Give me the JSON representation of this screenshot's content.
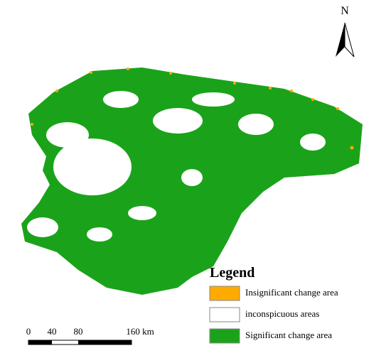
{
  "north": "N",
  "legend": {
    "title": "Legend",
    "items": [
      {
        "label": "Insignificant change area",
        "color": "#ffaa00"
      },
      {
        "label": "inconspicuous areas",
        "color": "#ffffff"
      },
      {
        "label": "Significant change area",
        "color": "#1aa31a"
      }
    ]
  },
  "scale_bar": {
    "labels": [
      "0",
      "40",
      "80",
      "160 km"
    ]
  }
}
